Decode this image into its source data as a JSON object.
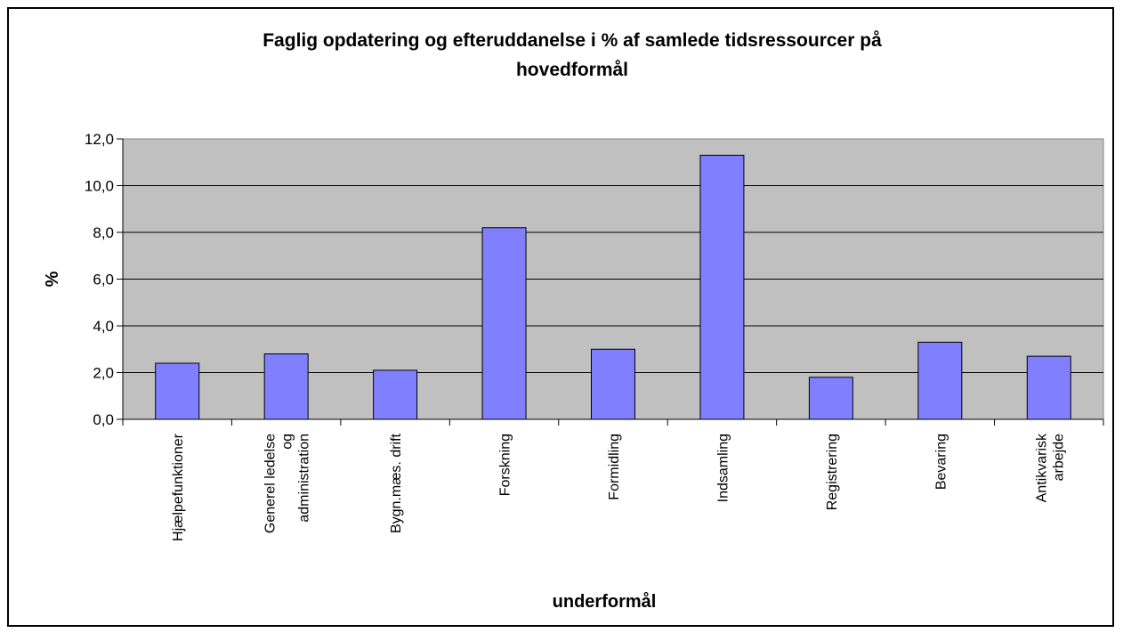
{
  "chart_data": {
    "type": "bar",
    "title": "Faglig opdatering og efteruddanelse i % af samlede tidsressourcer på hovedformål",
    "title_lines": [
      "Faglig opdatering og efteruddanelse i % af samlede tidsressourcer på",
      "hovedformål"
    ],
    "xlabel": "underformål",
    "ylabel": "%",
    "ylim": [
      0,
      12
    ],
    "yticks": [
      "0,0",
      "2,0",
      "4,0",
      "6,0",
      "8,0",
      "10,0",
      "12,0"
    ],
    "categories": [
      [
        "Hjælpefunktioner"
      ],
      [
        "Generel ledelse",
        "og",
        "administration"
      ],
      [
        "Bygn.mæs. drift"
      ],
      [
        "Forskning"
      ],
      [
        "Formidling"
      ],
      [
        "Indsamling"
      ],
      [
        "Registrering"
      ],
      [
        "Bevaring"
      ],
      [
        "Antikvarisk",
        "arbejde"
      ]
    ],
    "values": [
      2.4,
      2.8,
      2.1,
      8.2,
      3.0,
      11.3,
      1.8,
      3.3,
      2.7
    ],
    "grid": true,
    "legend": "none",
    "bar_color": "#8080ff",
    "plot_bg": "#c0c0c0"
  }
}
